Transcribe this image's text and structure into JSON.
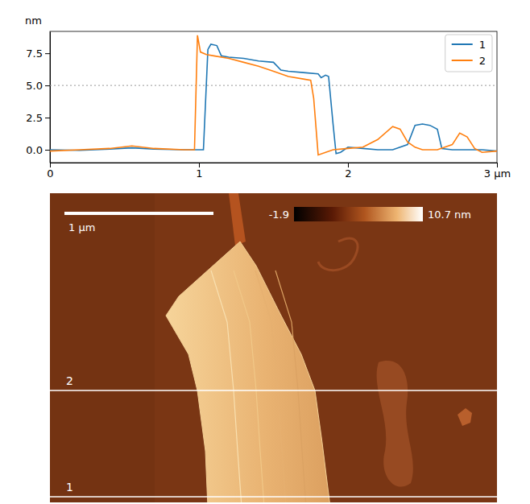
{
  "chart_data": {
    "type": "line",
    "y_label": "nm",
    "xlim": [
      0,
      3
    ],
    "xticks": [
      0,
      1,
      2,
      {
        "value": 3,
        "label": "3 μm"
      }
    ],
    "ylim": [
      -1,
      9.2
    ],
    "yticks": [
      {
        "value": 0,
        "label": "0.0"
      },
      {
        "value": 2.5,
        "label": "2.5"
      },
      {
        "value": 5,
        "label": "5.0"
      },
      {
        "value": 7.5,
        "label": "7.5"
      }
    ],
    "grid": false,
    "legend": "upper right",
    "reference_line": 5,
    "series": [
      {
        "name": "1",
        "color": "#1f77b4",
        "x": [
          0,
          0.2,
          0.4,
          0.55,
          0.7,
          0.9,
          1.03,
          1.06,
          1.08,
          1.12,
          1.15,
          1.2,
          1.3,
          1.4,
          1.5,
          1.55,
          1.6,
          1.7,
          1.8,
          1.82,
          1.85,
          1.87,
          1.9,
          1.92,
          1.95,
          2.0,
          2.1,
          2.2,
          2.3,
          2.4,
          2.45,
          2.5,
          2.55,
          2.6,
          2.63,
          2.7,
          2.8,
          2.9,
          3.0
        ],
        "values": [
          0,
          -0.05,
          0.05,
          0.15,
          0.05,
          0,
          0,
          7.8,
          8.2,
          8.1,
          7.3,
          7.2,
          7.1,
          6.9,
          6.8,
          6.2,
          6.1,
          6.0,
          5.9,
          5.6,
          5.8,
          5.7,
          2.0,
          -0.3,
          -0.2,
          0.2,
          0.1,
          0,
          0,
          0.4,
          1.9,
          2.0,
          1.9,
          1.6,
          0.1,
          0,
          0,
          0,
          -0.1
        ]
      },
      {
        "name": "2",
        "color": "#ff7f0e",
        "x": [
          0,
          0.2,
          0.4,
          0.55,
          0.7,
          0.9,
          0.97,
          0.99,
          1.01,
          1.05,
          1.1,
          1.2,
          1.3,
          1.4,
          1.5,
          1.6,
          1.7,
          1.75,
          1.77,
          1.8,
          1.85,
          1.9,
          2.0,
          2.1,
          2.2,
          2.3,
          2.35,
          2.4,
          2.45,
          2.5,
          2.6,
          2.7,
          2.75,
          2.8,
          2.85,
          2.9,
          3.0
        ],
        "values": [
          -0.1,
          0,
          0.1,
          0.3,
          0.1,
          0,
          0,
          8.9,
          7.6,
          7.4,
          7.3,
          7.1,
          6.8,
          6.5,
          6.1,
          5.7,
          5.5,
          5.4,
          4.0,
          -0.4,
          -0.2,
          0,
          0.1,
          0.2,
          0.8,
          1.8,
          1.6,
          0.6,
          0.2,
          0,
          0,
          0.4,
          1.3,
          1.0,
          0.1,
          -0.2,
          -0.1
        ]
      }
    ],
    "image": {
      "colorbar": {
        "range": [
          -1.9,
          10.7
        ],
        "ticks": [
          -1.9,
          {
            "value": 10.7,
            "label": "10.7 nm"
          }
        ]
      },
      "scale_bar": {
        "value": 1,
        "label": "1 μm"
      },
      "line_labels": [
        "1",
        "2"
      ]
    }
  }
}
